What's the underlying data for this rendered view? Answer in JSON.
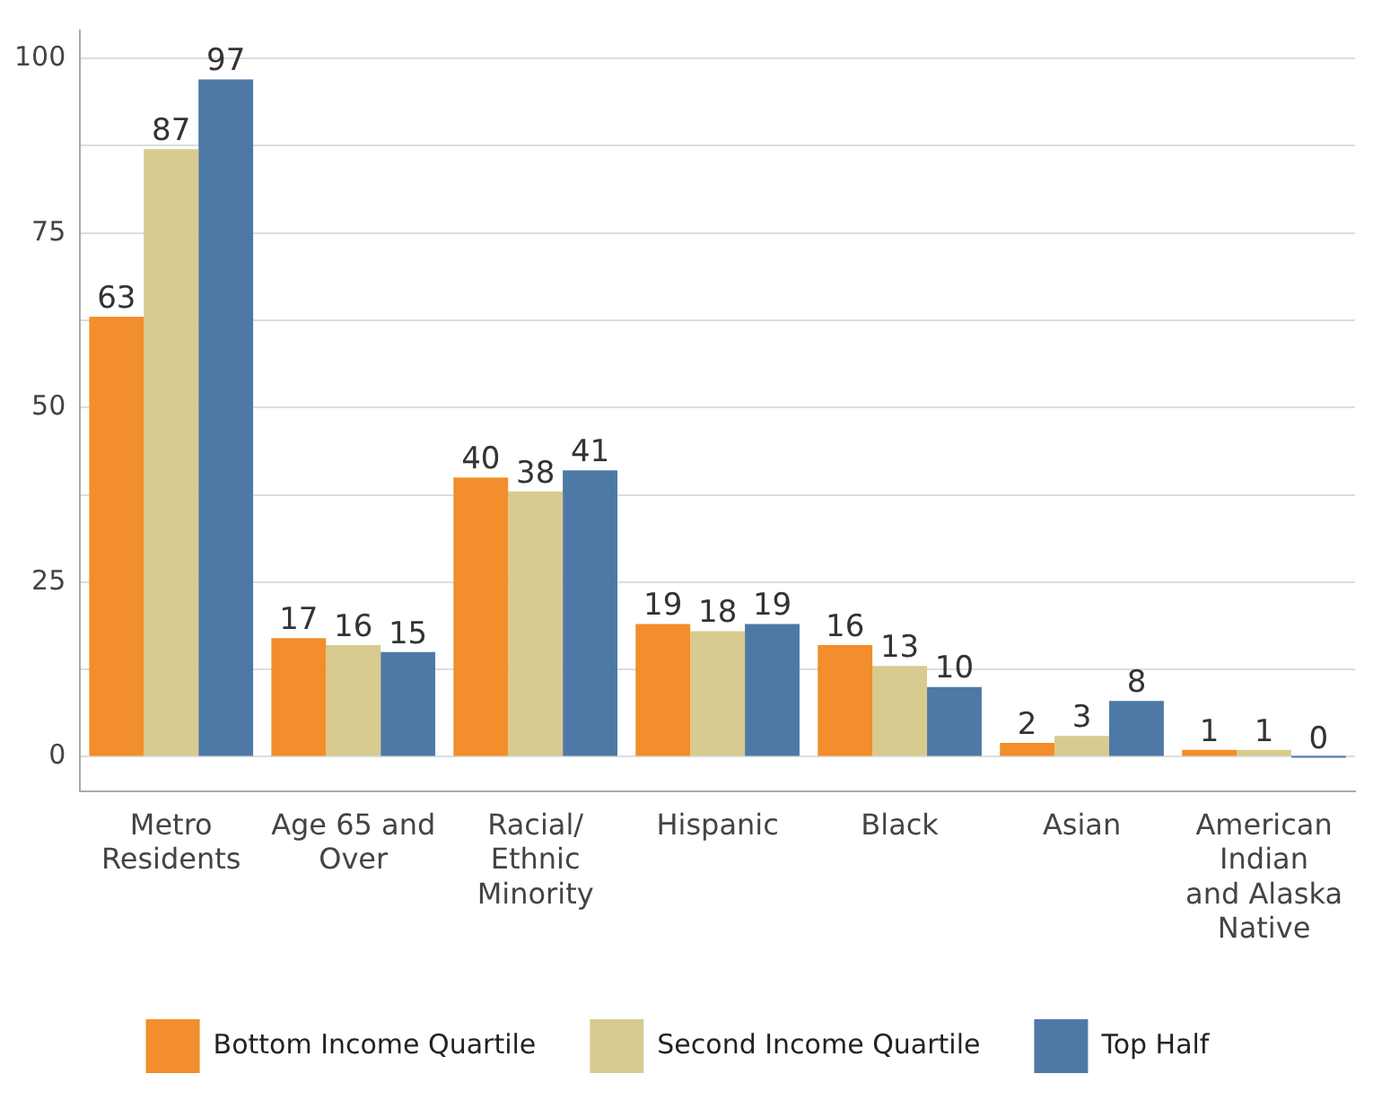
{
  "chart_data": {
    "type": "bar",
    "categories": [
      "Metro\nResidents",
      "Age 65 and\nOver",
      "Racial/\nEthnic\nMinority",
      "Hispanic",
      "Black",
      "Asian",
      "American\nIndian\nand Alaska\nNative"
    ],
    "series": [
      {
        "name": "Bottom Income Quartile",
        "color": "#f28e2b",
        "values": [
          63,
          17,
          40,
          19,
          16,
          2,
          1
        ]
      },
      {
        "name": "Second Income Quartile",
        "color": "#d7cb8f",
        "values": [
          87,
          16,
          38,
          18,
          13,
          3,
          1
        ]
      },
      {
        "name": "Top Half",
        "color": "#4e79a7",
        "values": [
          97,
          15,
          41,
          19,
          10,
          8,
          0
        ]
      }
    ],
    "ylim": [
      -5,
      104
    ],
    "yticks": [
      0,
      {
        "value": 12.5,
        "label": null
      },
      25,
      {
        "value": 37.5,
        "label": null
      },
      50,
      {
        "value": 62.5,
        "label": null
      },
      75,
      {
        "value": 87.5,
        "label": null
      },
      100
    ],
    "grid": "y",
    "legend": "bottom",
    "data_labels": true
  }
}
